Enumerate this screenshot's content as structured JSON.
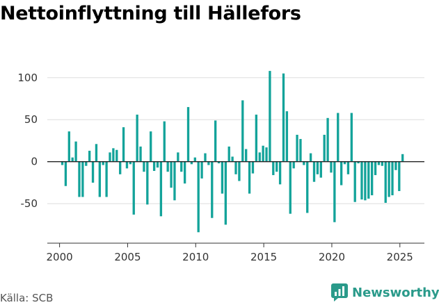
{
  "title": "Nettoinflyttning till Hällefors",
  "source": "Källa: SCB",
  "brand": {
    "name": "Newsworthy",
    "color": "#2a9a8a"
  },
  "chart_data": {
    "type": "bar",
    "color": "#13a39a",
    "x_ticks": [
      "2000",
      "2005",
      "2010",
      "2015",
      "2020",
      "2025"
    ],
    "y_ticks": [
      -50,
      0,
      50,
      100
    ],
    "ylim": [
      -97,
      118
    ],
    "xlim": [
      1999.1,
      2026.8
    ],
    "grid": true,
    "x_start": 2000.2,
    "step": 0.25,
    "values": [
      -4,
      -29,
      36,
      5,
      24,
      -42,
      -42,
      -5,
      13,
      -25,
      21,
      -42,
      -4,
      -42,
      11,
      16,
      14,
      -15,
      41,
      -8,
      -3,
      -63,
      56,
      18,
      -12,
      -51,
      36,
      -11,
      -7,
      -65,
      48,
      -12,
      -31,
      -46,
      11,
      -12,
      -26,
      65,
      -3,
      5,
      -84,
      -20,
      10,
      -4,
      -67,
      49,
      -2,
      -38,
      -75,
      18,
      6,
      -15,
      -23,
      73,
      15,
      -38,
      -14,
      56,
      11,
      19,
      17,
      108,
      -16,
      -12,
      -27,
      105,
      60,
      -62,
      -8,
      32,
      27,
      -4,
      -61,
      10,
      -24,
      -15,
      -19,
      32,
      52,
      -13,
      -72,
      58,
      -28,
      -3,
      -15,
      58,
      -48,
      -2,
      -45,
      -46,
      -44,
      -40,
      -16,
      -4,
      -5,
      -49,
      -42,
      -40,
      -10,
      -35,
      9
    ]
  }
}
